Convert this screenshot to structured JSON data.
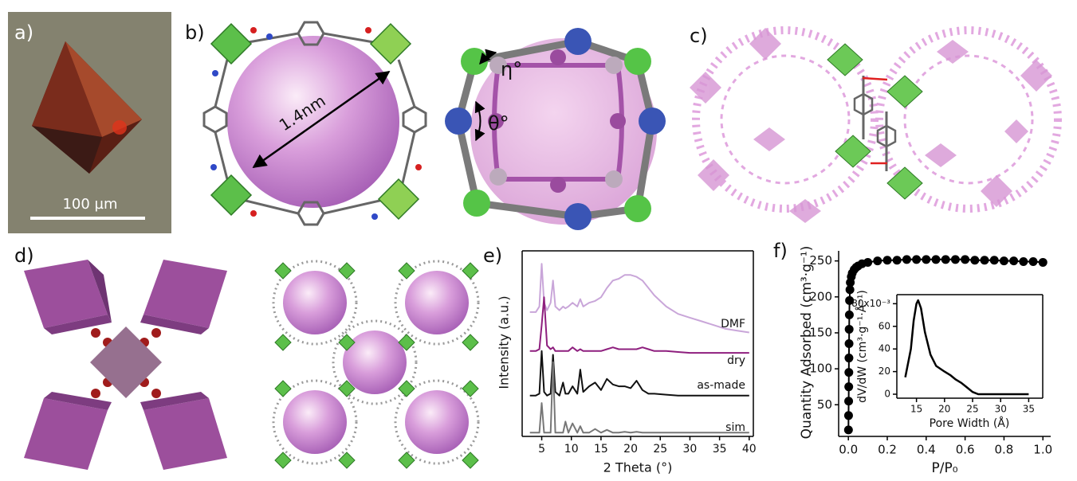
{
  "panels": {
    "a": {
      "label": "a)",
      "scale_bar": "100 µm"
    },
    "b": {
      "label": "b)",
      "pore_size": "1.4nm",
      "angle_eta": "η°",
      "angle_theta": "θ°"
    },
    "c": {
      "label": "c)"
    },
    "d": {
      "label": "d)"
    },
    "e": {
      "label": "e)"
    },
    "f": {
      "label": "f)"
    }
  },
  "chart_data": [
    {
      "type": "line",
      "xlabel": "2 Theta (°)",
      "ylabel": "Intensity (a.u.)",
      "xlim": [
        1.7,
        40.7
      ],
      "xticks": [
        5,
        10,
        15,
        20,
        25,
        30,
        35,
        40
      ],
      "ylim": [
        0,
        100
      ],
      "x": [
        3,
        4,
        4.6,
        5,
        5.4,
        5.9,
        6.5,
        6.9,
        7.3,
        8,
        8.6,
        9,
        9.5,
        10.2,
        11,
        11.5,
        12,
        13,
        14,
        15,
        16,
        17,
        18,
        19,
        20,
        21,
        22,
        23,
        24,
        26,
        28,
        30,
        32,
        34,
        36,
        38,
        40
      ],
      "series": [
        {
          "name": "DMF",
          "color": "#c9a6d9",
          "values": [
            67,
            67,
            70,
            93,
            72,
            68,
            72,
            84,
            70,
            68,
            70,
            69,
            70,
            72,
            70,
            74,
            70,
            72,
            73,
            75,
            80,
            84,
            85,
            87,
            87,
            86,
            84,
            80,
            76,
            70,
            66,
            64,
            62,
            60,
            58,
            57,
            56
          ]
        },
        {
          "name": "dry",
          "color": "#8e1f7e",
          "values": [
            46,
            46,
            47,
            60,
            75,
            49,
            47,
            48,
            46,
            46,
            46,
            46,
            46,
            48,
            46,
            47,
            46,
            46,
            46,
            46,
            47,
            48,
            47,
            47,
            47,
            47,
            48,
            47,
            46,
            46,
            45.5,
            45,
            45,
            45,
            45,
            45,
            45
          ]
        },
        {
          "name": "as-made",
          "color": "#111111",
          "values": [
            22,
            22,
            23,
            46,
            24,
            22,
            23,
            44,
            24,
            22,
            29,
            23,
            23,
            27,
            23,
            36,
            24,
            27,
            29,
            25,
            31,
            28,
            27,
            27,
            26,
            30,
            25,
            23,
            23,
            22.5,
            22,
            22,
            22,
            22,
            22,
            22,
            22
          ]
        },
        {
          "name": "sim",
          "color": "#777777",
          "values": [
            2,
            2,
            2,
            18,
            2,
            2,
            2,
            40,
            2,
            2,
            2,
            8,
            2,
            7,
            2,
            5.5,
            2,
            2,
            4,
            2,
            3.5,
            2,
            2,
            2.5,
            2,
            2.5,
            2,
            2,
            2,
            2,
            2,
            2,
            2,
            2,
            2,
            2,
            2
          ]
        }
      ]
    },
    {
      "type": "scatter",
      "xlabel": "P/P₀",
      "ylabel": "Quantity Adsorbed (cm³·g⁻¹)",
      "xlim": [
        -0.05,
        1.04
      ],
      "ylim": [
        6,
        264
      ],
      "color": "#000000",
      "xticks": [
        {
          "value": 0,
          "label": "0.0"
        },
        {
          "value": 0.2,
          "label": "0.2"
        },
        {
          "value": 0.4,
          "label": "0.4"
        },
        {
          "value": 0.6,
          "label": "0.6"
        },
        {
          "value": 0.8,
          "label": "0.8"
        },
        {
          "value": 1,
          "label": "1.0"
        }
      ],
      "yticks": [
        50,
        100,
        150,
        200,
        250
      ],
      "x": [
        0.0005,
        0.001,
        0.0015,
        0.002,
        0.0025,
        0.003,
        0.0035,
        0.004,
        0.005,
        0.006,
        0.008,
        0.01,
        0.015,
        0.02,
        0.03,
        0.04,
        0.05,
        0.07,
        0.1,
        0.15,
        0.2,
        0.25,
        0.3,
        0.35,
        0.4,
        0.45,
        0.5,
        0.55,
        0.6,
        0.65,
        0.7,
        0.75,
        0.8,
        0.85,
        0.9,
        0.95,
        1.0
      ],
      "values": [
        15,
        35,
        55,
        75,
        95,
        115,
        135,
        155,
        175,
        195,
        210,
        220,
        228,
        233,
        238,
        241,
        243,
        246,
        248,
        250,
        251,
        251,
        252,
        252,
        252,
        252,
        252,
        252,
        252,
        251,
        251,
        251,
        250,
        250,
        249,
        249,
        248
      ]
    },
    {
      "type": "line",
      "xlabel": "Pore Width (Å)",
      "ylabel": "dV/dW (cm³·g⁻¹·Å⁻¹)",
      "xlim": [
        11.5,
        37.5
      ],
      "ylim": [
        -0.0035,
        0.088
      ],
      "color": "#000000",
      "xticks": [
        15,
        20,
        25,
        30,
        35
      ],
      "yticks": [
        0,
        {
          "value": 0.02,
          "label": "20"
        },
        {
          "value": 0.04,
          "label": "40"
        },
        {
          "value": 0.06,
          "label": "60"
        },
        {
          "value": 0.08,
          "label": "80x10⁻³"
        }
      ],
      "x": [
        13,
        14,
        14.5,
        15,
        15.3,
        15.8,
        16.5,
        17.5,
        18.5,
        20,
        21,
        22,
        23,
        24,
        25,
        26,
        30,
        35
      ],
      "values": [
        0.015,
        0.04,
        0.065,
        0.08,
        0.083,
        0.076,
        0.055,
        0.035,
        0.025,
        0.02,
        0.017,
        0.013,
        0.01,
        0.006,
        0.002,
        0,
        0,
        0
      ]
    }
  ]
}
